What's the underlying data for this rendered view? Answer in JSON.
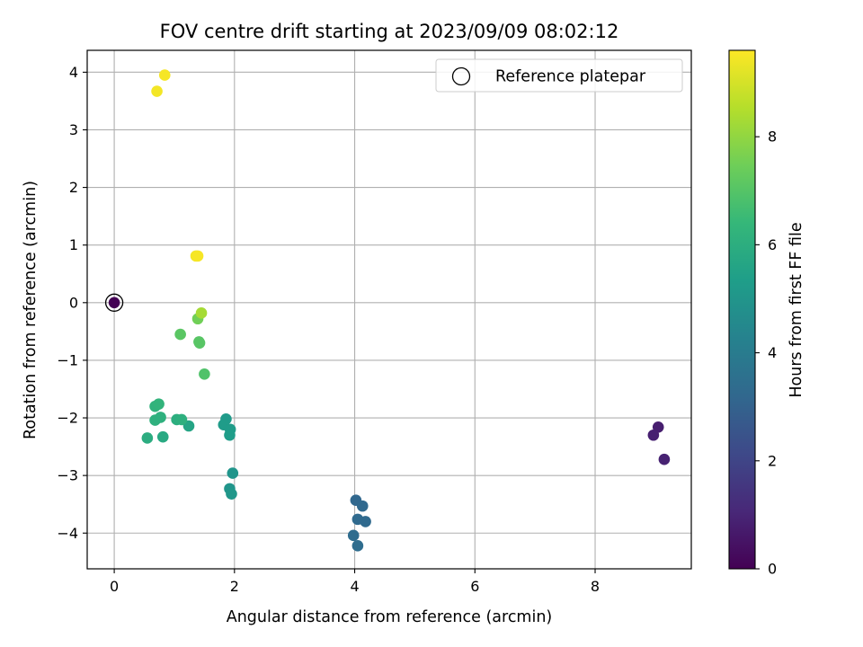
{
  "chart_data": {
    "type": "scatter",
    "title": "FOV centre drift starting at 2023/09/09 08:02:12",
    "xlabel": "Angular distance from reference (arcmin)",
    "ylabel": "Rotation from reference (arcmin)",
    "xlim": [
      -0.45,
      9.6
    ],
    "ylim": [
      -4.62,
      4.38
    ],
    "xticks": [
      0,
      2,
      4,
      6,
      8
    ],
    "xtick_labels": [
      "0",
      "2",
      "4",
      "6",
      "8"
    ],
    "yticks": [
      -4,
      -3,
      -2,
      -1,
      0,
      1,
      2,
      3,
      4
    ],
    "ytick_labels": [
      "−4",
      "−3",
      "−2",
      "−1",
      "0",
      "1",
      "2",
      "3",
      "4"
    ],
    "grid": true,
    "legend": {
      "placement": "top-right",
      "entries": [
        "Reference platepar"
      ]
    },
    "reference_point": {
      "label": "Reference platepar",
      "x": 0,
      "y": 0
    },
    "colorbar": {
      "label": "Hours from first FF file",
      "colormap": "viridis",
      "min": 0,
      "max": 9.6,
      "ticks": [
        0,
        2,
        4,
        6,
        8
      ],
      "tick_labels": [
        "0",
        "2",
        "4",
        "6",
        "8"
      ]
    },
    "points": [
      {
        "x": 0.0,
        "y": 0.0,
        "hours": 0.0
      },
      {
        "x": 9.05,
        "y": -2.16,
        "hours": 0.8
      },
      {
        "x": 8.97,
        "y": -2.3,
        "hours": 0.85
      },
      {
        "x": 9.15,
        "y": -2.72,
        "hours": 0.9
      },
      {
        "x": 4.02,
        "y": -3.43,
        "hours": 3.2
      },
      {
        "x": 4.13,
        "y": -3.53,
        "hours": 3.25
      },
      {
        "x": 4.05,
        "y": -3.76,
        "hours": 3.3
      },
      {
        "x": 4.18,
        "y": -3.8,
        "hours": 3.3
      },
      {
        "x": 3.98,
        "y": -4.04,
        "hours": 3.35
      },
      {
        "x": 4.05,
        "y": -4.22,
        "hours": 3.4
      },
      {
        "x": 1.97,
        "y": -2.96,
        "hours": 5.0
      },
      {
        "x": 1.92,
        "y": -3.23,
        "hours": 5.0
      },
      {
        "x": 1.95,
        "y": -3.32,
        "hours": 5.05
      },
      {
        "x": 1.86,
        "y": -2.02,
        "hours": 5.2
      },
      {
        "x": 1.82,
        "y": -2.12,
        "hours": 5.25
      },
      {
        "x": 1.93,
        "y": -2.2,
        "hours": 5.25
      },
      {
        "x": 1.92,
        "y": -2.3,
        "hours": 5.3
      },
      {
        "x": 1.24,
        "y": -2.14,
        "hours": 5.6
      },
      {
        "x": 0.81,
        "y": -2.33,
        "hours": 5.8
      },
      {
        "x": 0.55,
        "y": -2.35,
        "hours": 5.95
      },
      {
        "x": 1.04,
        "y": -2.03,
        "hours": 6.0
      },
      {
        "x": 1.12,
        "y": -2.03,
        "hours": 6.05
      },
      {
        "x": 0.68,
        "y": -2.04,
        "hours": 6.1
      },
      {
        "x": 0.77,
        "y": -1.99,
        "hours": 6.1
      },
      {
        "x": 0.68,
        "y": -1.8,
        "hours": 6.2
      },
      {
        "x": 0.74,
        "y": -1.76,
        "hours": 6.25
      },
      {
        "x": 1.5,
        "y": -1.24,
        "hours": 6.9
      },
      {
        "x": 1.41,
        "y": -0.68,
        "hours": 7.05
      },
      {
        "x": 1.42,
        "y": -0.7,
        "hours": 7.05
      },
      {
        "x": 1.1,
        "y": -0.55,
        "hours": 7.1
      },
      {
        "x": 1.39,
        "y": -0.28,
        "hours": 7.5
      },
      {
        "x": 1.45,
        "y": -0.18,
        "hours": 8.3
      },
      {
        "x": 1.36,
        "y": 0.81,
        "hours": 9.45
      },
      {
        "x": 1.39,
        "y": 0.81,
        "hours": 9.5
      },
      {
        "x": 0.71,
        "y": 3.67,
        "hours": 9.45
      },
      {
        "x": 0.84,
        "y": 3.95,
        "hours": 9.5
      }
    ]
  }
}
